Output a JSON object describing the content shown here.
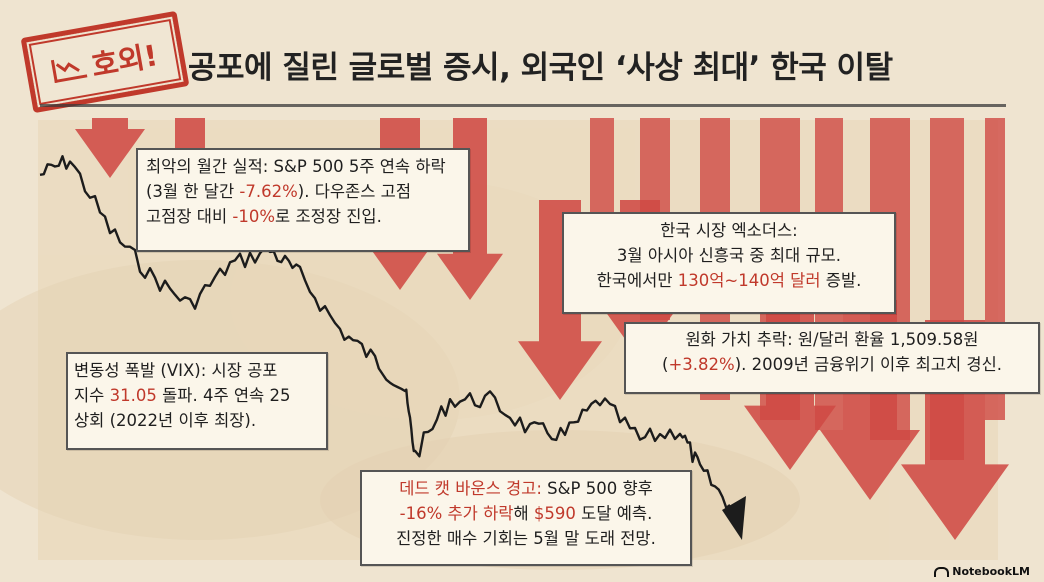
{
  "header": {
    "stamp_text": "호외!",
    "title": "공포에 질린 글로벌 증시, 외국인 ‘사상 최대’ 한국 이탈"
  },
  "boxes": {
    "monthly": {
      "line1": "최악의 월간 실적: S&P 500 5주 연속 하락",
      "line2a": "(3월 한 달간 ",
      "line2b": "-7.62%",
      "line2c": "). 다우존스 고점",
      "line3a": "고점장 대비 ",
      "line3b": "-10%",
      "line3c": "로 조정장 진입."
    },
    "korea": {
      "line1": "한국 시장 엑소더스:",
      "line2": "3월 아시아 신흥국 중 최대 규모.",
      "line3a": "한국에서만 ",
      "line3b": "130억~140억 달러",
      "line3c": " 증발."
    },
    "krw": {
      "line1": "원화 가치 추락: 원/달러 환율 1,509.58원",
      "line2a": "(",
      "line2b": "+3.82%",
      "line2c": "). 2009년 금융위기 이후 최고치 경신."
    },
    "vix": {
      "line1": "변동성 폭발 (VIX): 시장 공포",
      "line2a": "지수 ",
      "line2b": "31.05",
      "line2c": " 돌파. 4주 연속 25",
      "line3": "상회 (2022년 이후 최장)."
    },
    "dcb": {
      "line1a": "데드 캣 바운스 경고:",
      "line1b": " S&P 500 향후",
      "line2a": "-16% 추가 하락",
      "line2b": "해 ",
      "line2c": "$590",
      "line2d": " 도달 예측.",
      "line3": "진정한 매수 기회는 5월 말 도래 전망."
    }
  },
  "brand": {
    "label": "NotebookLM"
  },
  "colors": {
    "accent_red": "#c0392b",
    "arrow_red": "#cf4a44",
    "paper": "#efe4d0",
    "chart_line": "#1c1c1c"
  }
}
